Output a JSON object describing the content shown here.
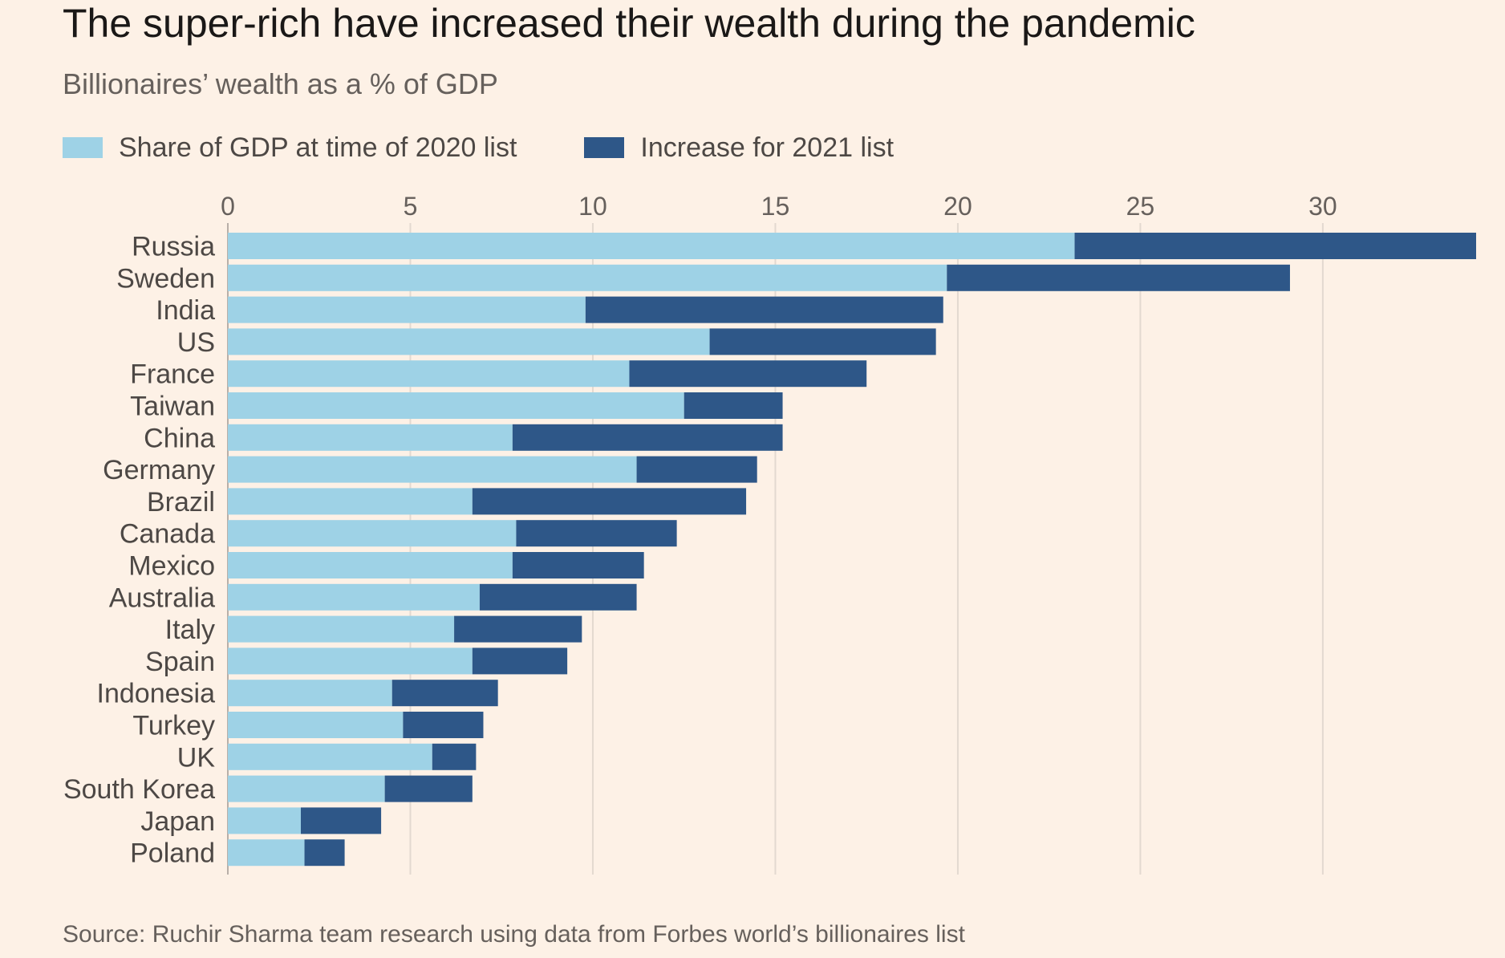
{
  "title": "The super-rich have increased their wealth during the pandemic",
  "subtitle": "Billionaires’ wealth as a % of GDP",
  "source": "Source: Ruchir Sharma team research using data from Forbes world’s billionaires list",
  "colors": {
    "background": "#fdf1e6",
    "share_2020": "#9ed2e6",
    "increase_2021": "#2e5788",
    "grid": "#e3d9d0"
  },
  "chart_data": {
    "type": "bar",
    "orientation": "horizontal",
    "stacked": true,
    "categories": [
      "Russia",
      "Sweden",
      "India",
      "US",
      "France",
      "Taiwan",
      "China",
      "Germany",
      "Brazil",
      "Canada",
      "Mexico",
      "Australia",
      "Italy",
      "Spain",
      "Indonesia",
      "Turkey",
      "UK",
      "South Korea",
      "Japan",
      "Poland"
    ],
    "series": [
      {
        "name": "Share of GDP at time of 2020 list",
        "color": "#9ed2e6",
        "values": [
          23.2,
          19.7,
          9.8,
          13.2,
          11.0,
          12.5,
          7.8,
          11.2,
          6.7,
          7.9,
          7.8,
          6.9,
          6.2,
          6.7,
          4.5,
          4.8,
          5.6,
          4.3,
          2.0,
          2.1
        ]
      },
      {
        "name": "Increase for 2021 list",
        "color": "#2e5788",
        "values": [
          11.0,
          9.4,
          9.8,
          6.2,
          6.5,
          2.7,
          7.4,
          3.3,
          7.5,
          4.4,
          3.6,
          4.3,
          3.5,
          2.6,
          2.9,
          2.2,
          1.2,
          2.4,
          2.2,
          1.1
        ]
      }
    ],
    "x_ticks": [
      0,
      5,
      10,
      15,
      20,
      25,
      30
    ],
    "xlim": [
      0,
      34.2
    ],
    "grid": true,
    "axis_position": "top",
    "legend_position": "top-left"
  }
}
